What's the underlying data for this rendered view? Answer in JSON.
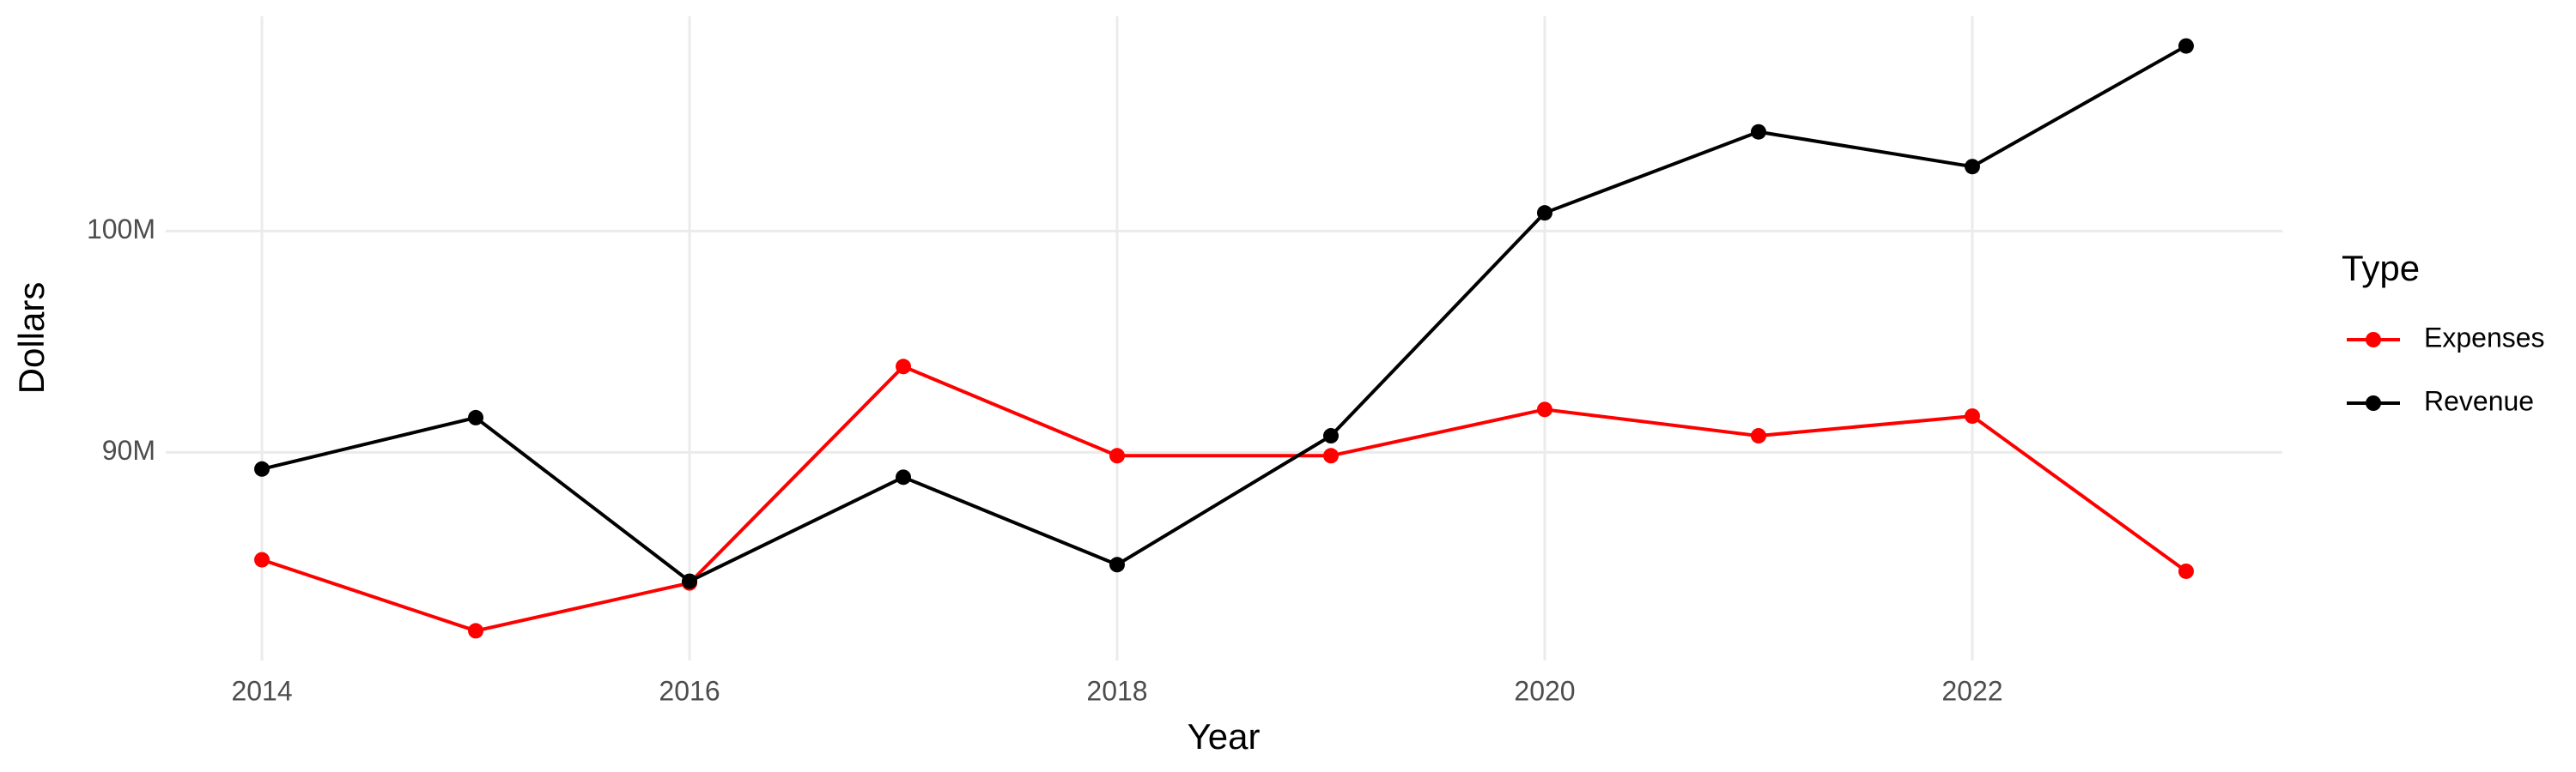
{
  "chart_data": {
    "type": "line",
    "x_label": "Year",
    "y_label": "Dollars",
    "legend_title": "Type",
    "x": [
      2014,
      2015,
      2016,
      2017,
      2018,
      2019,
      2020,
      2021,
      2022,
      2023
    ],
    "series": [
      {
        "name": "Expenses",
        "color": "#ff0000",
        "values": [
          85150000,
          81940000,
          84100000,
          93880000,
          89850000,
          89850000,
          91940000,
          90750000,
          91640000,
          84630000
        ]
      },
      {
        "name": "Revenue",
        "color": "#000000",
        "values": [
          89250000,
          91570000,
          84180000,
          88880000,
          84930000,
          90750000,
          100820000,
          104480000,
          102910000,
          108360000
        ]
      }
    ],
    "xlim": [
      2013.55,
      2023.45
    ],
    "xticks": [
      2014,
      2016,
      2018,
      2020,
      2022
    ],
    "ylim": [
      80600000,
      109700000
    ],
    "yticks": [
      {
        "value": 90000000,
        "label": "90M"
      },
      {
        "value": 100000000,
        "label": "100M"
      }
    ],
    "grid": true,
    "legend": "right"
  }
}
